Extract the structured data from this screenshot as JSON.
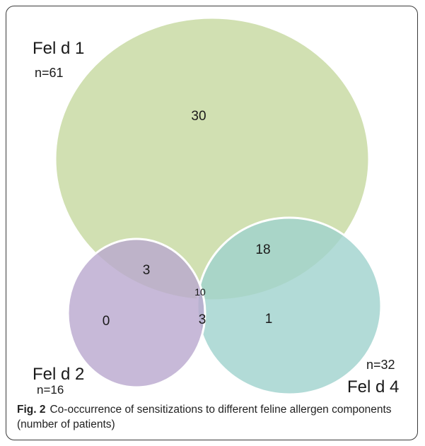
{
  "sets": {
    "fel_d_1": {
      "name": "Fel d 1",
      "n": "n=61",
      "color": "#c9dba5"
    },
    "fel_d_2": {
      "name": "Fel d 2",
      "n": "n=16",
      "color": "#b9a7ce"
    },
    "fel_d_4": {
      "name": "Fel d 4",
      "n": "n=32",
      "color": "#9fd2cd"
    }
  },
  "regions": {
    "only_fel_d_1": "30",
    "fel_d_1_and_2": "3",
    "fel_d_1_and_4": "18",
    "all_three": "10",
    "only_fel_d_2": "0",
    "fel_d_2_and_4": "3",
    "only_fel_d_4": "1"
  },
  "caption": {
    "lead": "Fig. 2",
    "text": "Co-occurrence of sensitizations to different feline allergen components (number of patients)"
  }
}
